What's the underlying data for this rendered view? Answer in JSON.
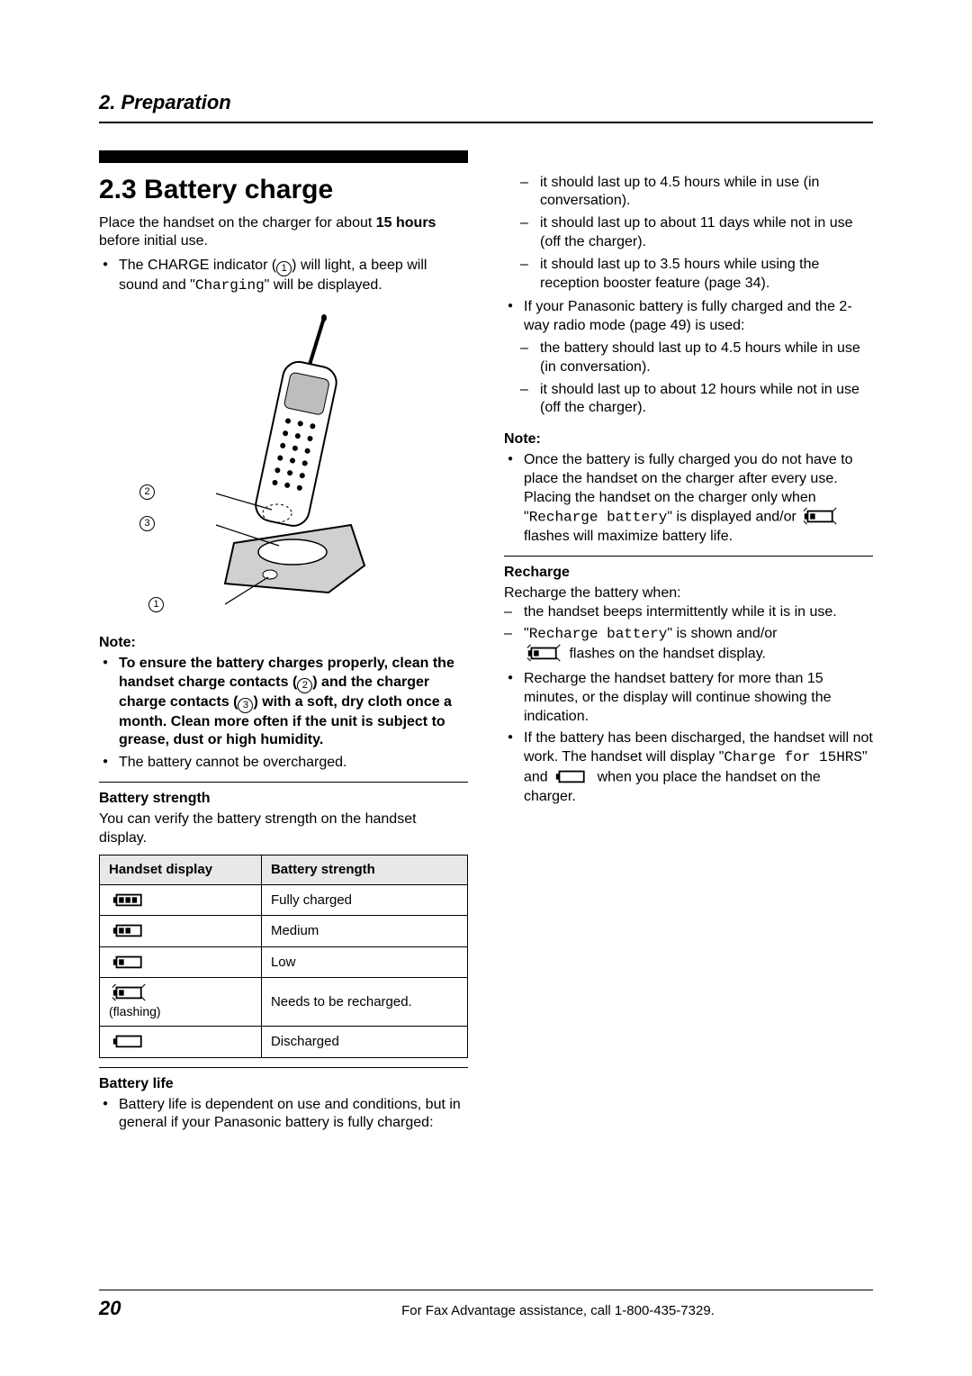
{
  "header": {
    "chapter": "2. Preparation"
  },
  "section": {
    "number_title": "2.3 Battery charge",
    "intro_before": "Place the handset on the charger for about ",
    "intro_bold": "15 hours",
    "intro_after": " before initial use.",
    "bullet1_a": "The CHARGE indicator (",
    "bullet1_num": "1",
    "bullet1_b": ") will light, a beep will sound and \"",
    "bullet1_charging": "Charging",
    "bullet1_c": "\" will be displayed."
  },
  "figure": {
    "label2": "2",
    "label3": "3",
    "label1": "1"
  },
  "note1": {
    "label": "Note:",
    "b1_a": "To ensure the battery charges properly, clean the handset charge contacts (",
    "b1_n2": "2",
    "b1_b": ") and the charger charge contacts (",
    "b1_n3": "3",
    "b1_c": ") with a soft, dry cloth once a month. Clean more often if the unit is subject to grease, dust or high humidity.",
    "b2": "The battery cannot be overcharged."
  },
  "strength": {
    "title": "Battery strength",
    "desc": "You can verify the battery strength on the handset display.",
    "col1": "Handset display",
    "col2": "Battery strength",
    "rows": [
      {
        "bars": 3,
        "flash": false,
        "label": "Fully charged"
      },
      {
        "bars": 2,
        "flash": false,
        "label": "Medium"
      },
      {
        "bars": 1,
        "flash": false,
        "label": "Low"
      },
      {
        "bars": 1,
        "flash": true,
        "label": "Needs to be recharged."
      },
      {
        "bars": 0,
        "flash": false,
        "label": "Discharged"
      }
    ],
    "flashing_text": "(flashing)"
  },
  "life": {
    "title": "Battery life",
    "b1": "Battery life is dependent on use and conditions, but in general if your Panasonic battery is fully charged:",
    "d1": "it should last up to 4.5 hours while in use (in conversation).",
    "d2": "it should last up to about 11 days while not in use (off the charger).",
    "d3": "it should last up to 3.5 hours while using the reception booster feature (page 34).",
    "b2": "If your Panasonic battery is fully charged and the 2-way radio mode (page 49) is used:",
    "d4": "the battery should last up to 4.5 hours while in use (in conversation).",
    "d5": "it should last up to about 12 hours while not in use (off the charger)."
  },
  "note2": {
    "label": "Note:",
    "b1_a": "Once the battery is fully charged you do not have to place the handset on the charger after every use. Placing the handset on the charger only when \"",
    "b1_mono": "Recharge battery",
    "b1_b": "\" is displayed and/or ",
    "b1_c": " flashes will maximize battery life."
  },
  "recharge": {
    "title": "Recharge",
    "intro": "Recharge the battery when:",
    "d1": "the handset beeps intermittently while it is in use.",
    "d2_a": "\"",
    "d2_mono": "Recharge battery",
    "d2_b": "\" is shown and/or ",
    "d2_c": " flashes on the handset display.",
    "b1": "Recharge the handset battery for more than 15 minutes, or the display will continue showing the indication.",
    "b2_a": "If the battery has been discharged, the handset will not work. The handset will display \"",
    "b2_mono": "Charge for 15HRS",
    "b2_b": "\" and ",
    "b2_c": " when you place the handset on the charger."
  },
  "footer": {
    "page": "20",
    "text": "For Fax Advantage assistance, call 1-800-435-7329."
  }
}
